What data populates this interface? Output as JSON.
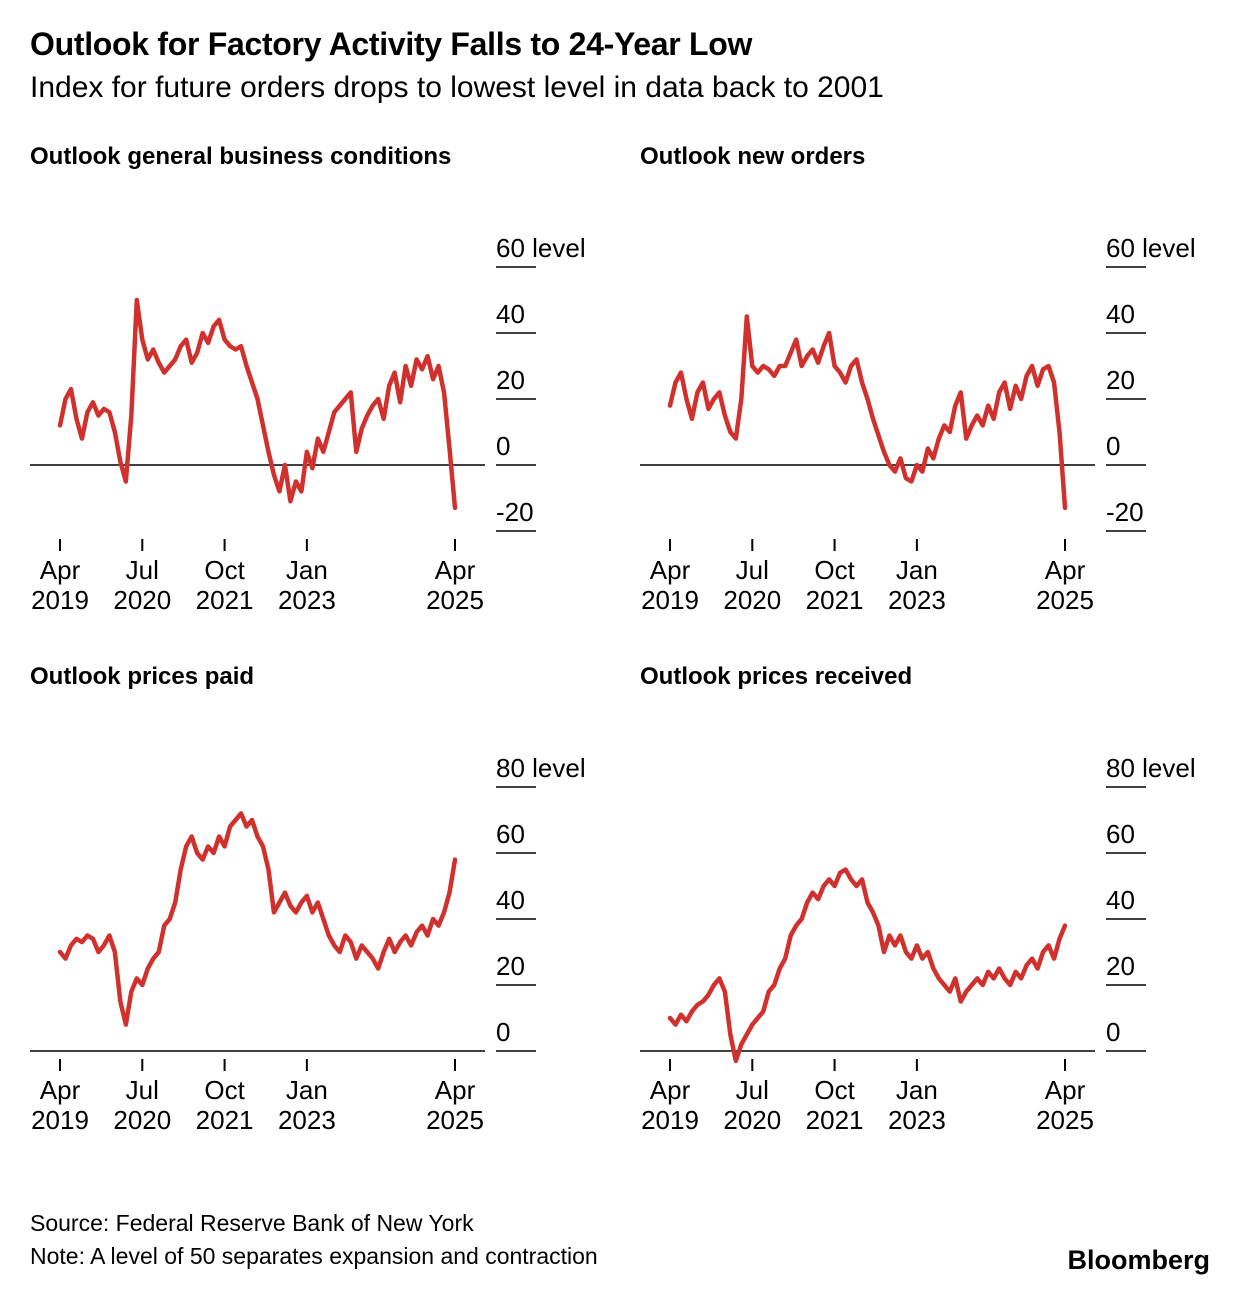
{
  "header": {
    "title": "Outlook for Factory Activity Falls to 24-Year Low",
    "subtitle": "Index for future orders drops to lowest level in data back to 2001"
  },
  "footer": {
    "source": "Source: Federal Reserve Bank of New York",
    "note": "Note: A level of 50 separates expansion and contraction",
    "brand": "Bloomberg"
  },
  "colors": {
    "line": "#d0312d",
    "axis": "#000000",
    "text": "#000000"
  },
  "chart_data": [
    {
      "type": "line",
      "title": "Outlook general business conditions",
      "unit": "level",
      "yticks": [
        60,
        40,
        20,
        0,
        -20
      ],
      "ylim": [
        -25,
        65
      ],
      "x_ticks": [
        {
          "label": "Apr",
          "year": "2019",
          "month_index": 0
        },
        {
          "label": "Jul",
          "year": "2020",
          "month_index": 15
        },
        {
          "label": "Oct",
          "year": "2021",
          "month_index": 30
        },
        {
          "label": "Jan",
          "year": "2023",
          "month_index": 45
        },
        {
          "label": "Apr",
          "year": "2025",
          "month_index": 72
        }
      ],
      "values": [
        12,
        20,
        23,
        14,
        8,
        16,
        19,
        15,
        17,
        16,
        10,
        1,
        -5,
        15,
        50,
        38,
        32,
        35,
        31,
        28,
        30,
        32,
        36,
        38,
        31,
        34,
        40,
        37,
        42,
        44,
        38,
        36,
        35,
        36,
        30,
        25,
        20,
        12,
        4,
        -3,
        -8,
        0,
        -11,
        -5,
        -8,
        4,
        -1,
        8,
        4,
        10,
        16,
        18,
        20,
        22,
        4,
        11,
        15,
        18,
        20,
        14,
        24,
        28,
        19,
        30,
        24,
        32,
        29,
        33,
        26,
        30,
        22,
        5,
        -13
      ]
    },
    {
      "type": "line",
      "title": "Outlook new orders",
      "unit": "level",
      "yticks": [
        60,
        40,
        20,
        0,
        -20
      ],
      "ylim": [
        -25,
        65
      ],
      "x_ticks": [
        {
          "label": "Apr",
          "year": "2019",
          "month_index": 0
        },
        {
          "label": "Jul",
          "year": "2020",
          "month_index": 15
        },
        {
          "label": "Oct",
          "year": "2021",
          "month_index": 30
        },
        {
          "label": "Jan",
          "year": "2023",
          "month_index": 45
        },
        {
          "label": "Apr",
          "year": "2025",
          "month_index": 72
        }
      ],
      "values": [
        18,
        25,
        28,
        20,
        14,
        22,
        25,
        17,
        20,
        22,
        15,
        10,
        8,
        20,
        45,
        30,
        28,
        30,
        29,
        27,
        30,
        30,
        34,
        38,
        30,
        33,
        35,
        31,
        36,
        40,
        30,
        28,
        25,
        30,
        32,
        25,
        20,
        14,
        9,
        4,
        0,
        -2,
        2,
        -4,
        -5,
        0,
        -2,
        5,
        2,
        8,
        12,
        10,
        18,
        22,
        8,
        12,
        15,
        12,
        18,
        14,
        22,
        25,
        17,
        24,
        20,
        27,
        30,
        24,
        29,
        30,
        25,
        10,
        -13
      ]
    },
    {
      "type": "line",
      "title": "Outlook prices paid",
      "unit": "level",
      "yticks": [
        80,
        60,
        40,
        20,
        0
      ],
      "ylim": [
        -5,
        85
      ],
      "x_ticks": [
        {
          "label": "Apr",
          "year": "2019",
          "month_index": 0
        },
        {
          "label": "Jul",
          "year": "2020",
          "month_index": 15
        },
        {
          "label": "Oct",
          "year": "2021",
          "month_index": 30
        },
        {
          "label": "Jan",
          "year": "2023",
          "month_index": 45
        },
        {
          "label": "Apr",
          "year": "2025",
          "month_index": 72
        }
      ],
      "values": [
        30,
        28,
        32,
        34,
        33,
        35,
        34,
        30,
        32,
        35,
        30,
        15,
        8,
        18,
        22,
        20,
        25,
        28,
        30,
        38,
        40,
        45,
        55,
        62,
        65,
        60,
        58,
        62,
        60,
        65,
        62,
        68,
        70,
        72,
        68,
        70,
        65,
        62,
        55,
        42,
        45,
        48,
        44,
        42,
        45,
        47,
        42,
        45,
        40,
        35,
        32,
        30,
        35,
        33,
        28,
        32,
        30,
        28,
        25,
        30,
        34,
        30,
        33,
        35,
        32,
        36,
        38,
        35,
        40,
        38,
        42,
        48,
        58
      ]
    },
    {
      "type": "line",
      "title": "Outlook prices received",
      "unit": "level",
      "yticks": [
        80,
        60,
        40,
        20,
        0
      ],
      "ylim": [
        -5,
        85
      ],
      "x_ticks": [
        {
          "label": "Apr",
          "year": "2019",
          "month_index": 0
        },
        {
          "label": "Jul",
          "year": "2020",
          "month_index": 15
        },
        {
          "label": "Oct",
          "year": "2021",
          "month_index": 30
        },
        {
          "label": "Jan",
          "year": "2023",
          "month_index": 45
        },
        {
          "label": "Apr",
          "year": "2025",
          "month_index": 72
        }
      ],
      "values": [
        10,
        8,
        11,
        9,
        12,
        14,
        15,
        17,
        20,
        22,
        18,
        5,
        -3,
        2,
        5,
        8,
        10,
        12,
        18,
        20,
        25,
        28,
        35,
        38,
        40,
        45,
        48,
        46,
        50,
        52,
        50,
        54,
        55,
        52,
        50,
        52,
        45,
        42,
        38,
        30,
        35,
        32,
        35,
        30,
        28,
        32,
        28,
        30,
        25,
        22,
        20,
        18,
        22,
        15,
        18,
        20,
        22,
        20,
        24,
        22,
        25,
        22,
        20,
        24,
        22,
        26,
        28,
        25,
        30,
        32,
        28,
        34,
        38
      ]
    }
  ]
}
